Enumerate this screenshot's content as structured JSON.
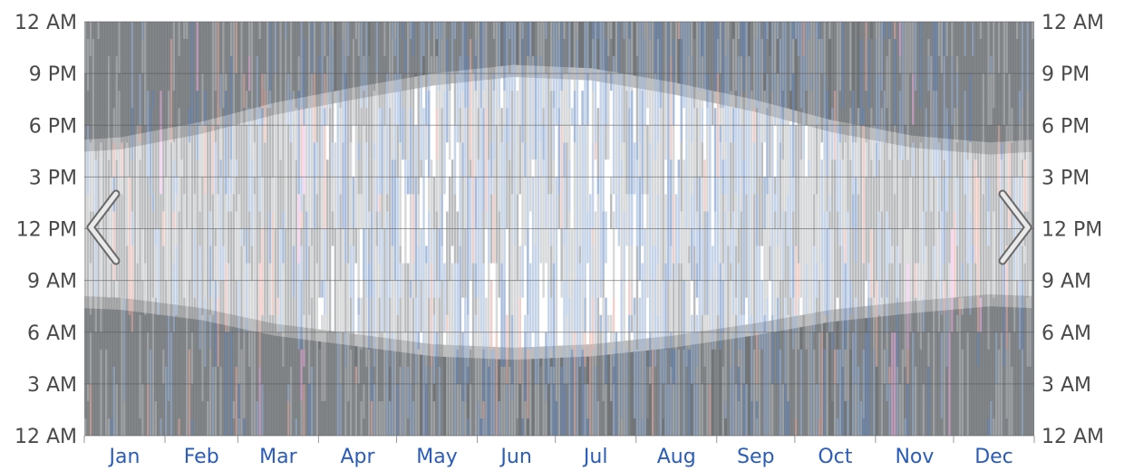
{
  "chart_data": {
    "type": "heatmap",
    "title": "",
    "xlabel": "",
    "ylabel": "",
    "x_categories": [
      "Jan",
      "Feb",
      "Mar",
      "Apr",
      "May",
      "Jun",
      "Jul",
      "Aug",
      "Sep",
      "Oct",
      "Nov",
      "Dec"
    ],
    "y_ticks": [
      "12 AM",
      "3 AM",
      "6 AM",
      "9 AM",
      "12 PM",
      "3 PM",
      "6 PM",
      "9 PM",
      "12 AM"
    ],
    "y_range_hours": [
      0,
      24
    ],
    "x_range_days": [
      1,
      365
    ],
    "grid": true,
    "legend": "none",
    "daylight_hours_by_month": {
      "months": [
        "Jan",
        "Feb",
        "Mar",
        "Apr",
        "May",
        "Jun",
        "Jul",
        "Aug",
        "Sep",
        "Oct",
        "Nov",
        "Dec"
      ],
      "sunrise": [
        8.0,
        7.4,
        6.5,
        5.9,
        5.3,
        5.1,
        5.3,
        5.8,
        6.5,
        7.3,
        7.8,
        8.2
      ],
      "sunset": [
        16.6,
        17.5,
        18.6,
        19.5,
        20.3,
        20.8,
        20.6,
        19.8,
        18.8,
        17.6,
        16.7,
        16.3
      ]
    },
    "twilight_offset_hours": 0.7,
    "colors": {
      "night": "#727578",
      "twilight": "#bdbdbd",
      "day": "#ffffff",
      "clear": "#ffffff",
      "overcast": "#8c8f92",
      "mostly_cloudy": "#bcbec0",
      "drizzle": "#9fb8da",
      "light_rain": "#6e8fc4",
      "mixed": "#e8b0a8",
      "snow": "#f0b4e4",
      "grid": "#555555",
      "month_label": "#2a5cb8",
      "tick_label": "#4a4a4a"
    }
  },
  "navigation": {
    "prev_icon": "chevron-left-icon",
    "next_icon": "chevron-right-icon"
  }
}
